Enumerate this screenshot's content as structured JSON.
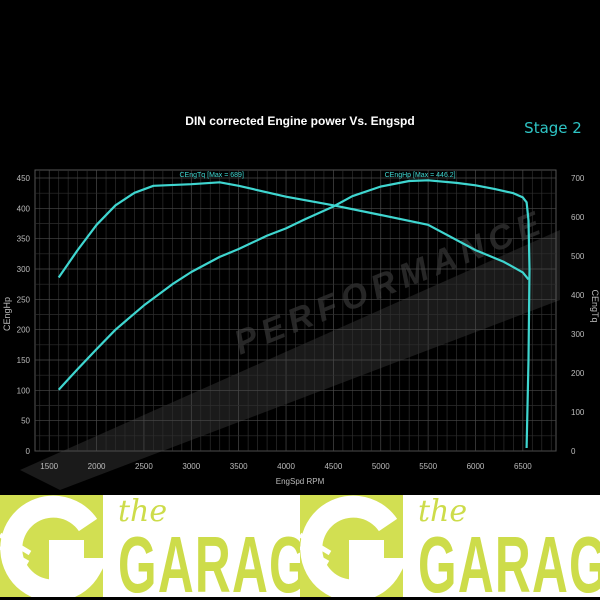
{
  "chart_data": {
    "type": "line",
    "title": "DIN corrected Engine power Vs. Engspd",
    "badge": "Stage 2",
    "xlabel": "EngSpd RPM",
    "ylabel_left": "CEngHp",
    "ylabel_right": "CEngTq",
    "xlim": [
      1350,
      6850
    ],
    "ylim_left": [
      0,
      450
    ],
    "ylim_right": [
      0,
      700
    ],
    "xticks": [
      1500,
      2000,
      2500,
      3000,
      3500,
      4000,
      4500,
      5000,
      5500,
      6000,
      6500
    ],
    "yticks_left": [
      0,
      50,
      100,
      150,
      200,
      250,
      300,
      350,
      400,
      450
    ],
    "yticks_right": [
      0,
      100,
      200,
      300,
      400,
      500,
      600,
      700
    ],
    "grid": true,
    "line_color": "#3fd6d0",
    "series": [
      {
        "name": "CEngTq",
        "label": "CEngTq [Max = 689]",
        "axis": "right",
        "x": [
          1600,
          1800,
          2000,
          2200,
          2400,
          2600,
          3000,
          3300,
          3500,
          4000,
          4500,
          5000,
          5500,
          6000,
          6300,
          6500,
          6560
        ],
        "y": [
          445,
          515,
          580,
          630,
          662,
          680,
          684,
          689,
          680,
          652,
          630,
          605,
          580,
          515,
          485,
          458,
          440
        ]
      },
      {
        "name": "CEngHp",
        "label": "CEngHp [Max = 446.2]",
        "axis": "left",
        "x": [
          1600,
          1800,
          2000,
          2200,
          2500,
          2800,
          3000,
          3300,
          3500,
          3800,
          4000,
          4200,
          4500,
          4700,
          5000,
          5300,
          5500,
          5800,
          6000,
          6200,
          6400,
          6500,
          6540,
          6560,
          6570,
          6560,
          6540
        ],
        "y": [
          101,
          135,
          168,
          200,
          240,
          275,
          295,
          320,
          333,
          355,
          367,
          382,
          403,
          420,
          436,
          445,
          446.2,
          442,
          438,
          432,
          425,
          418,
          410,
          380,
          300,
          150,
          5
        ]
      }
    ]
  },
  "watermark": {
    "text": "PERFORMANCE"
  },
  "footer": {
    "logos": [
      {
        "small": "the",
        "big": "GARAGE"
      },
      {
        "small": "the",
        "big": "GARAGE"
      }
    ],
    "accent": "#d2df52"
  }
}
